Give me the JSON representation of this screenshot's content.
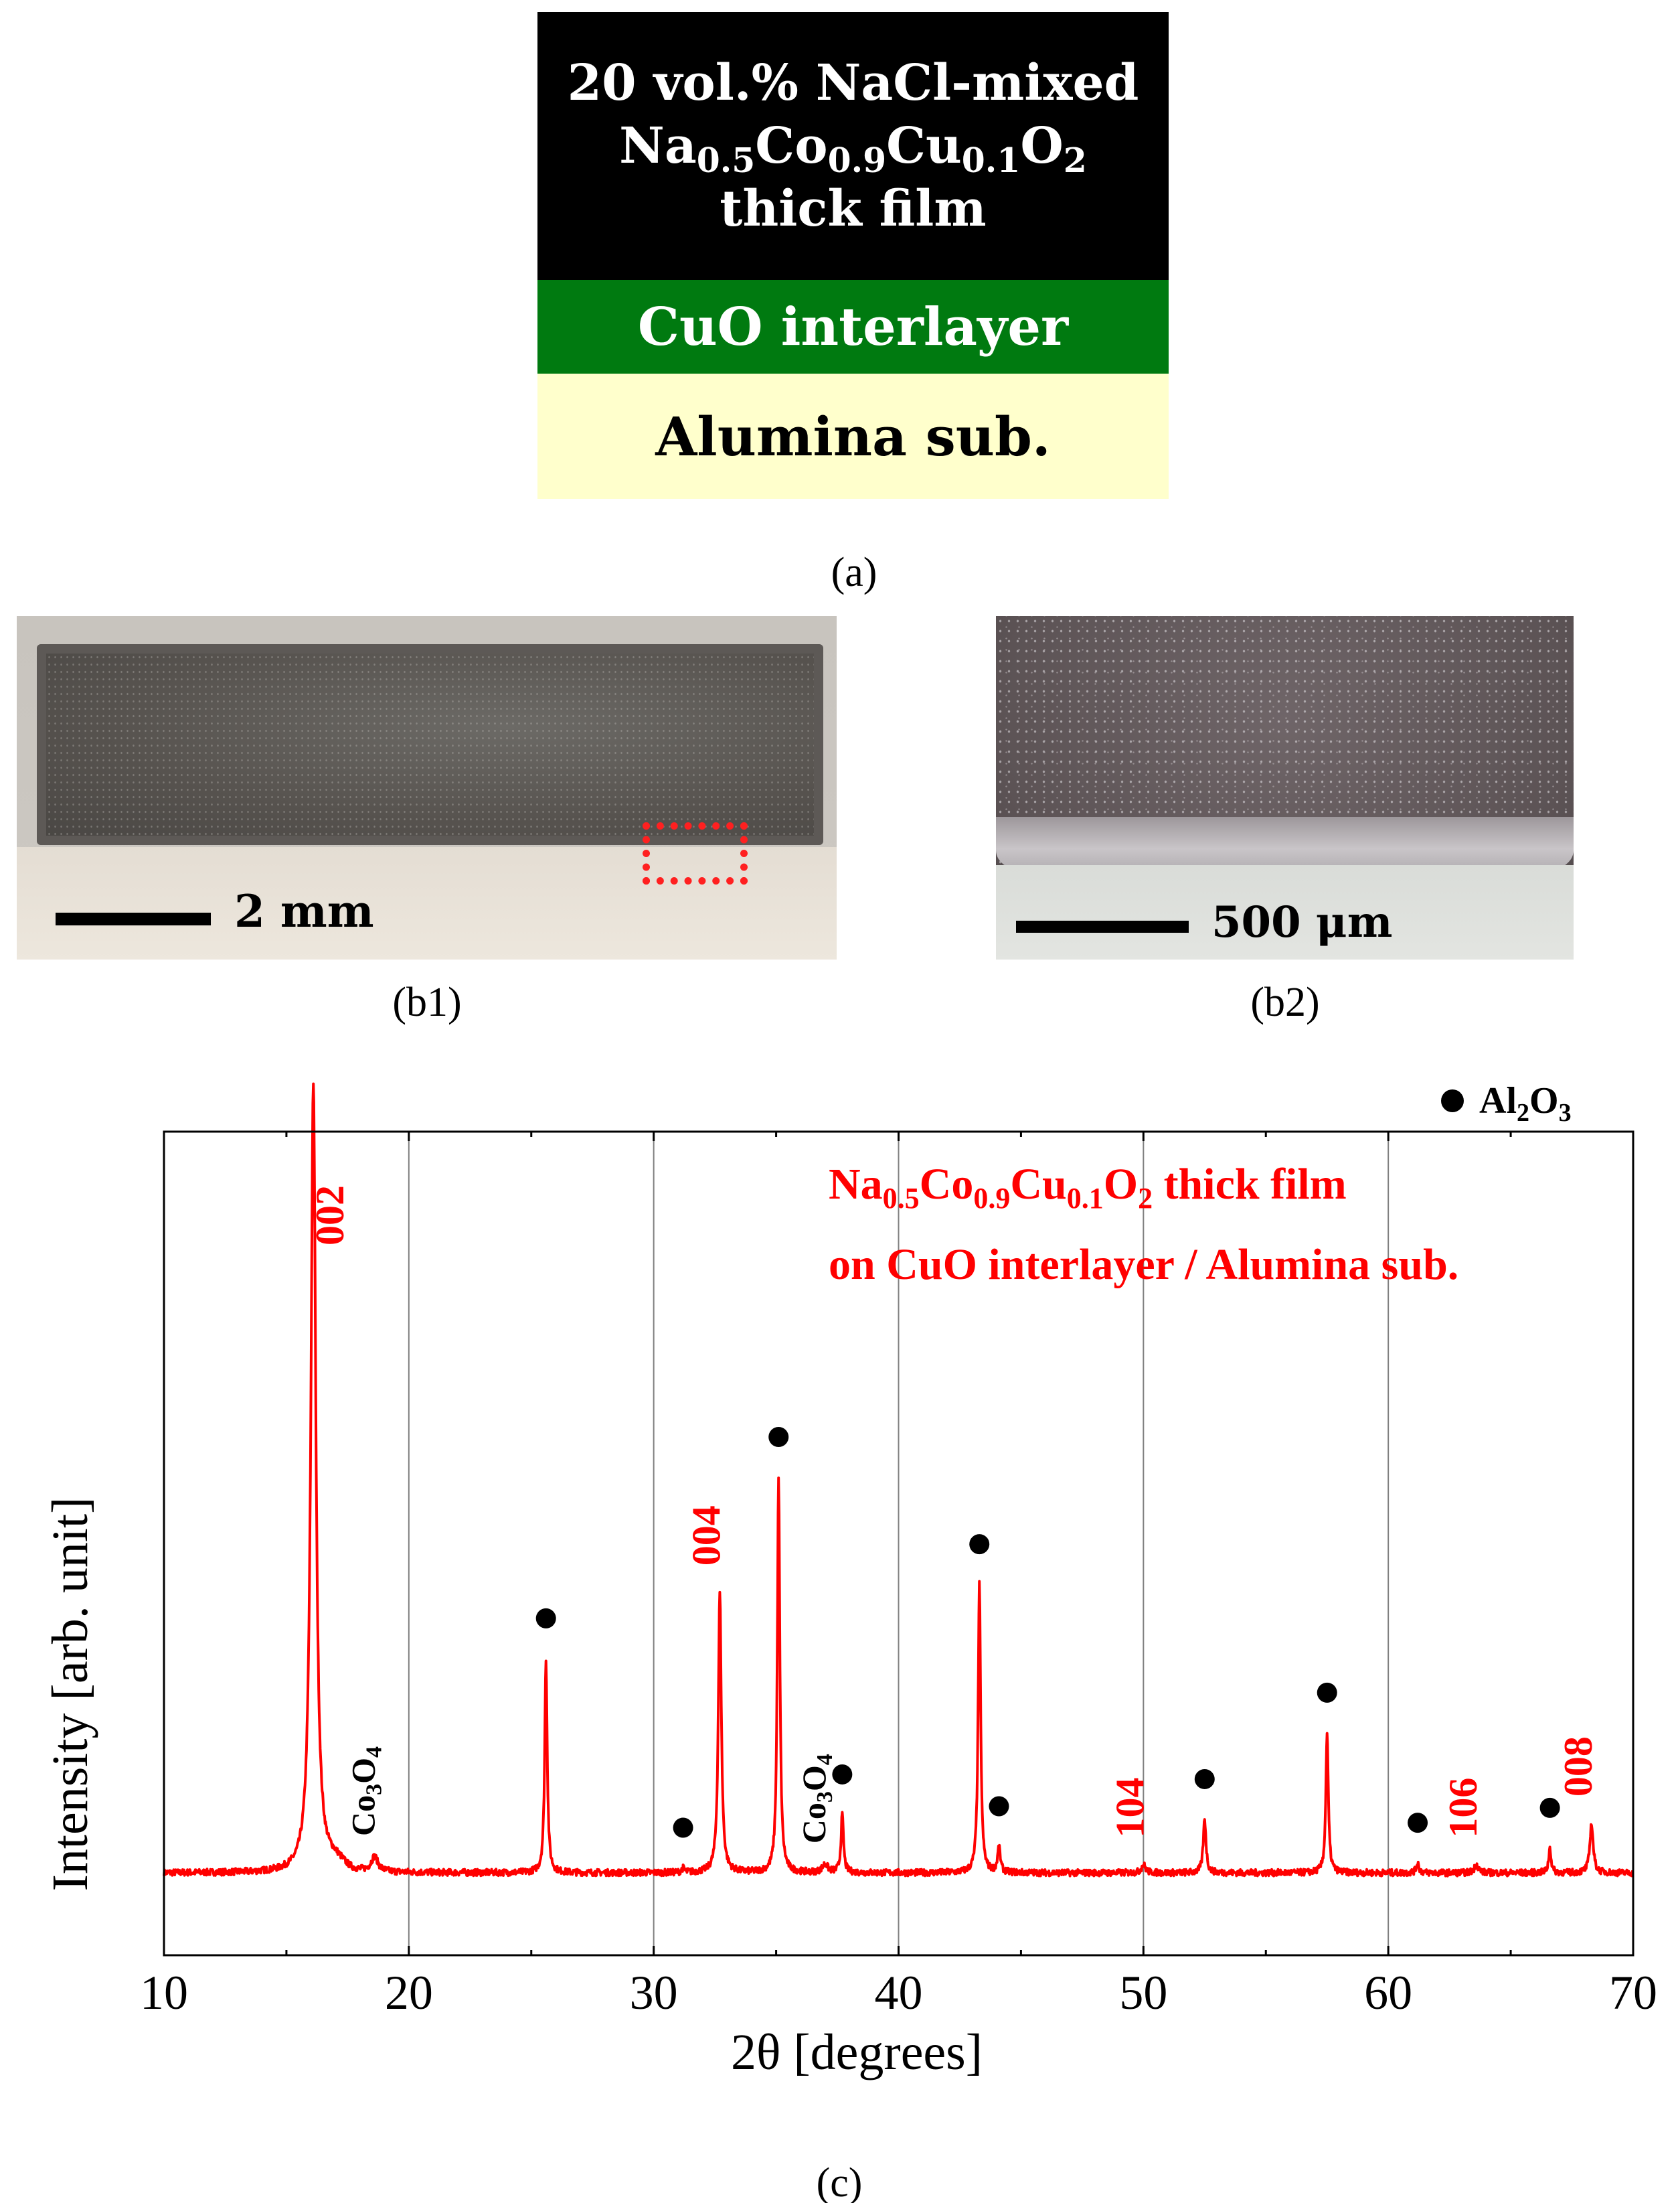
{
  "panel_a": {
    "film_line1": "20 vol.% NaCl-mixed",
    "film_line2": {
      "p1": "Na",
      "s1": "0.5",
      "p2": "Co",
      "s2": "0.9",
      "p3": "Cu",
      "s3": "0.1",
      "p4": "O",
      "s4": "2"
    },
    "film_line3": "thick film",
    "interlayer": "CuO interlayer",
    "substrate": "Alumina sub.",
    "caption": "(a)"
  },
  "panel_b1": {
    "scale_label": "2 mm",
    "caption": "(b1)"
  },
  "panel_b2": {
    "scale_label": "500 μm",
    "caption": "(b2)"
  },
  "panel_c": {
    "caption": "(c)"
  },
  "chart_data": {
    "type": "line",
    "title": "",
    "xlabel": "2θ [degrees]",
    "ylabel": "Intensity [arb. unit]",
    "xlim": [
      10,
      70
    ],
    "ylim": [
      0,
      1
    ],
    "x_ticks": [
      10,
      20,
      30,
      40,
      50,
      60,
      70
    ],
    "grid": "vertical",
    "line_color": "#ff0000",
    "legend": {
      "marker": "●",
      "label": "Al",
      "sub": "2",
      "label2": "O",
      "sub2": "3",
      "placement": "top-right"
    },
    "annotation": {
      "line1": {
        "p1": "Na",
        "s1": "0.5",
        "p2": "Co",
        "s2": "0.9",
        "p3": "Cu",
        "s3": "0.1",
        "p4": "O",
        "s4": "2",
        "tail": " thick film"
      },
      "line2": "on CuO interlayer / Alumina sub."
    },
    "baseline": 0.1,
    "peaks": [
      {
        "x": 16.1,
        "height": 0.96,
        "width": 0.18,
        "label": "002",
        "label_color": "#ff0000"
      },
      {
        "x": 18.6,
        "height": 0.018,
        "width": 0.25,
        "label": "Co3O4",
        "label_color": "#000000"
      },
      {
        "x": 25.6,
        "height": 0.26,
        "width": 0.09,
        "marker": true
      },
      {
        "x": 31.2,
        "height": 0.005,
        "width": 0.1,
        "marker": true
      },
      {
        "x": 32.7,
        "height": 0.34,
        "width": 0.11,
        "label": "004",
        "label_color": "#ff0000"
      },
      {
        "x": 35.1,
        "height": 0.48,
        "width": 0.09,
        "marker": true
      },
      {
        "x": 37.0,
        "height": 0.01,
        "width": 0.2,
        "label": "Co3O4",
        "label_color": "#000000"
      },
      {
        "x": 37.7,
        "height": 0.07,
        "width": 0.09,
        "marker": true
      },
      {
        "x": 43.3,
        "height": 0.35,
        "width": 0.09,
        "marker": true
      },
      {
        "x": 44.1,
        "height": 0.03,
        "width": 0.1,
        "marker": true
      },
      {
        "x": 50.0,
        "height": 0.01,
        "width": 0.15,
        "label": "104",
        "label_color": "#ff0000"
      },
      {
        "x": 52.5,
        "height": 0.065,
        "width": 0.1,
        "marker": true
      },
      {
        "x": 57.5,
        "height": 0.17,
        "width": 0.09,
        "marker": true
      },
      {
        "x": 61.2,
        "height": 0.012,
        "width": 0.1,
        "marker": true
      },
      {
        "x": 63.6,
        "height": 0.01,
        "width": 0.15,
        "label": "106",
        "label_color": "#ff0000"
      },
      {
        "x": 66.6,
        "height": 0.03,
        "width": 0.09,
        "marker": true
      },
      {
        "x": 68.3,
        "height": 0.06,
        "width": 0.12,
        "label": "008",
        "label_color": "#ff0000"
      }
    ]
  }
}
